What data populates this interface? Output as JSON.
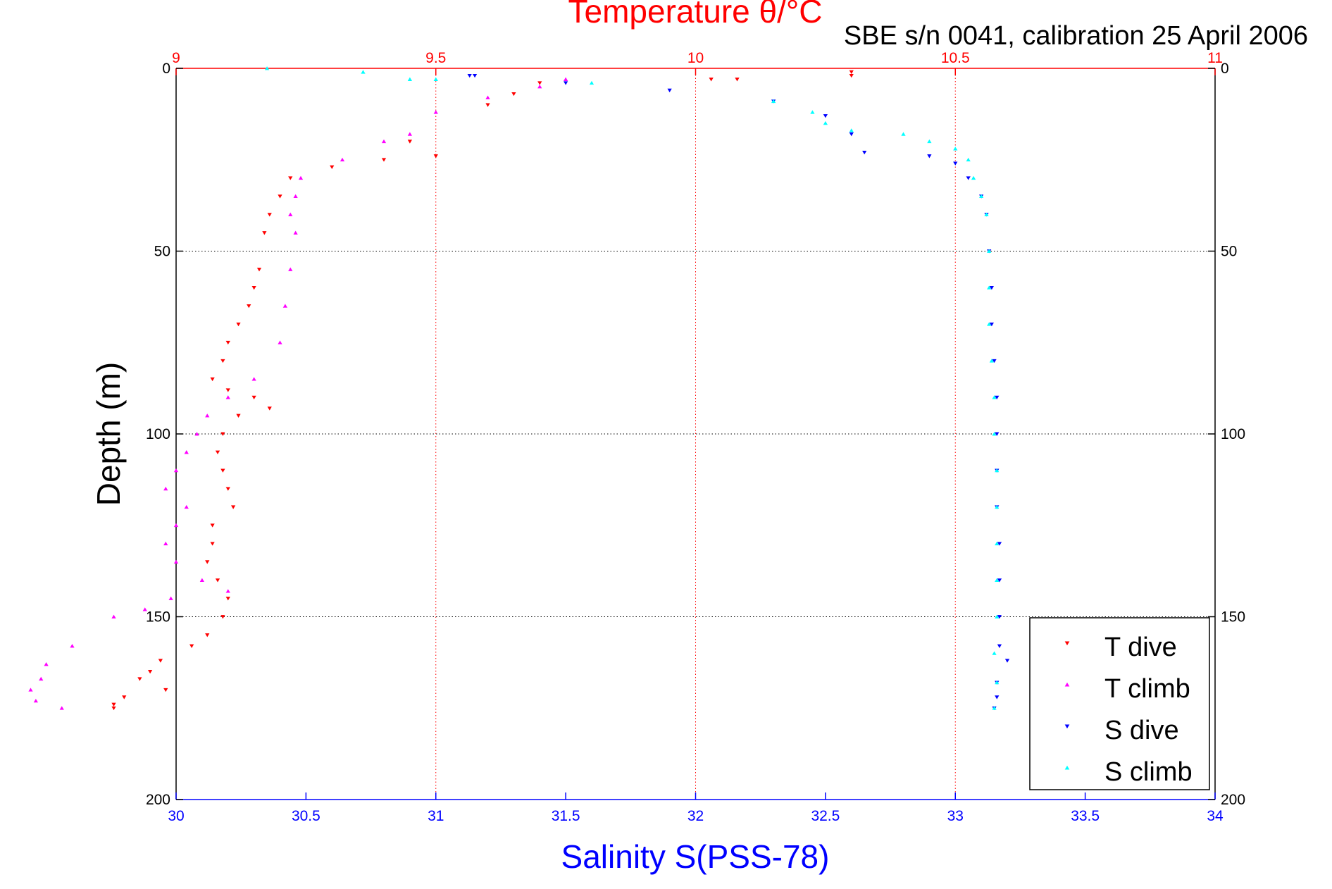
{
  "chart_data": {
    "type": "scatter",
    "annotation": "SBE s/n 0041, calibration 25 April 2006",
    "temperature_axis": {
      "title": "Temperature θ/°C",
      "range": [
        9,
        11
      ],
      "ticks": [
        "9",
        "9.5",
        "10",
        "10.5",
        "11"
      ],
      "color": "#ff0000"
    },
    "salinity_axis": {
      "title": "Salinity S(PSS-78)",
      "range": [
        30,
        34
      ],
      "ticks": [
        "30",
        "30.5",
        "31",
        "31.5",
        "32",
        "32.5",
        "33",
        "33.5",
        "34"
      ],
      "color": "#0000ff"
    },
    "depth_axis": {
      "title": "Depth (m)",
      "range": [
        0,
        200
      ],
      "reversed": true,
      "ticks": [
        "0",
        "50",
        "100",
        "150",
        "200"
      ]
    },
    "grid": {
      "vertical_on_temperature_ticks": true,
      "horizontal_on_depth_ticks": true
    },
    "legend": {
      "placement": "bottom-right",
      "entries": [
        "T dive",
        "T climb",
        "S dive",
        "S climb"
      ]
    },
    "series": [
      {
        "name": "T dive",
        "axis": "temperature",
        "marker": "triangle-down",
        "color": "#ff0000",
        "points": [
          [
            10.3,
            1
          ],
          [
            10.3,
            2
          ],
          [
            10.03,
            3
          ],
          [
            10.08,
            3
          ],
          [
            9.7,
            4
          ],
          [
            9.65,
            7
          ],
          [
            9.6,
            10
          ],
          [
            9.45,
            20
          ],
          [
            9.5,
            24
          ],
          [
            9.4,
            25
          ],
          [
            9.3,
            27
          ],
          [
            9.22,
            30
          ],
          [
            9.2,
            35
          ],
          [
            9.18,
            40
          ],
          [
            9.17,
            45
          ],
          [
            9.16,
            55
          ],
          [
            9.15,
            60
          ],
          [
            9.14,
            65
          ],
          [
            9.12,
            70
          ],
          [
            9.1,
            75
          ],
          [
            9.09,
            80
          ],
          [
            9.07,
            85
          ],
          [
            9.1,
            88
          ],
          [
            9.15,
            90
          ],
          [
            9.18,
            93
          ],
          [
            9.12,
            95
          ],
          [
            9.09,
            100
          ],
          [
            9.08,
            105
          ],
          [
            9.09,
            110
          ],
          [
            9.1,
            115
          ],
          [
            9.11,
            120
          ],
          [
            9.07,
            125
          ],
          [
            9.07,
            130
          ],
          [
            9.06,
            135
          ],
          [
            9.08,
            140
          ],
          [
            9.1,
            145
          ],
          [
            9.09,
            150
          ],
          [
            9.06,
            155
          ],
          [
            9.03,
            158
          ],
          [
            8.97,
            162
          ],
          [
            8.95,
            165
          ],
          [
            8.93,
            167
          ],
          [
            8.98,
            170
          ],
          [
            8.9,
            172
          ],
          [
            8.88,
            174
          ],
          [
            8.88,
            175
          ]
        ]
      },
      {
        "name": "T climb",
        "axis": "temperature",
        "marker": "triangle-up",
        "color": "#ff00ff",
        "points": [
          [
            9.75,
            3
          ],
          [
            9.7,
            5
          ],
          [
            9.6,
            8
          ],
          [
            9.5,
            12
          ],
          [
            9.45,
            18
          ],
          [
            9.4,
            20
          ],
          [
            9.32,
            25
          ],
          [
            9.24,
            30
          ],
          [
            9.23,
            35
          ],
          [
            9.22,
            40
          ],
          [
            9.23,
            45
          ],
          [
            9.22,
            55
          ],
          [
            9.21,
            65
          ],
          [
            9.2,
            75
          ],
          [
            9.15,
            85
          ],
          [
            9.1,
            90
          ],
          [
            9.06,
            95
          ],
          [
            9.04,
            100
          ],
          [
            9.02,
            105
          ],
          [
            9.0,
            110
          ],
          [
            8.98,
            115
          ],
          [
            9.02,
            120
          ],
          [
            9.0,
            125
          ],
          [
            8.98,
            130
          ],
          [
            9.0,
            135
          ],
          [
            9.05,
            140
          ],
          [
            9.1,
            143
          ],
          [
            8.99,
            145
          ],
          [
            8.94,
            148
          ],
          [
            8.88,
            150
          ],
          [
            8.8,
            158
          ],
          [
            8.75,
            163
          ],
          [
            8.74,
            167
          ],
          [
            8.72,
            170
          ],
          [
            8.73,
            173
          ],
          [
            8.78,
            175
          ]
        ]
      },
      {
        "name": "S dive",
        "axis": "salinity",
        "marker": "triangle-down",
        "color": "#0000ff",
        "points": [
          [
            31.13,
            2
          ],
          [
            31.15,
            2
          ],
          [
            31.5,
            4
          ],
          [
            31.9,
            6
          ],
          [
            32.3,
            9
          ],
          [
            32.5,
            13
          ],
          [
            32.6,
            18
          ],
          [
            32.65,
            23
          ],
          [
            32.9,
            24
          ],
          [
            33.0,
            26
          ],
          [
            33.05,
            30
          ],
          [
            33.1,
            35
          ],
          [
            33.12,
            40
          ],
          [
            33.13,
            50
          ],
          [
            33.14,
            60
          ],
          [
            33.14,
            70
          ],
          [
            33.15,
            80
          ],
          [
            33.16,
            90
          ],
          [
            33.16,
            100
          ],
          [
            33.16,
            110
          ],
          [
            33.16,
            120
          ],
          [
            33.17,
            130
          ],
          [
            33.17,
            140
          ],
          [
            33.17,
            150
          ],
          [
            33.17,
            158
          ],
          [
            33.2,
            162
          ],
          [
            33.16,
            168
          ],
          [
            33.16,
            172
          ],
          [
            33.15,
            175
          ]
        ]
      },
      {
        "name": "S climb",
        "axis": "salinity",
        "marker": "triangle-up",
        "color": "#00ffff",
        "points": [
          [
            30.35,
            0
          ],
          [
            30.72,
            1
          ],
          [
            30.9,
            3
          ],
          [
            31.0,
            3
          ],
          [
            31.6,
            4
          ],
          [
            32.3,
            9
          ],
          [
            32.45,
            12
          ],
          [
            32.5,
            15
          ],
          [
            32.6,
            17
          ],
          [
            32.8,
            18
          ],
          [
            32.9,
            20
          ],
          [
            33.0,
            22
          ],
          [
            33.05,
            25
          ],
          [
            33.07,
            30
          ],
          [
            33.1,
            35
          ],
          [
            33.12,
            40
          ],
          [
            33.13,
            50
          ],
          [
            33.13,
            60
          ],
          [
            33.13,
            70
          ],
          [
            33.14,
            80
          ],
          [
            33.15,
            90
          ],
          [
            33.15,
            100
          ],
          [
            33.16,
            110
          ],
          [
            33.16,
            120
          ],
          [
            33.16,
            130
          ],
          [
            33.16,
            140
          ],
          [
            33.16,
            150
          ],
          [
            33.15,
            160
          ],
          [
            33.16,
            168
          ],
          [
            33.15,
            175
          ]
        ]
      }
    ]
  }
}
